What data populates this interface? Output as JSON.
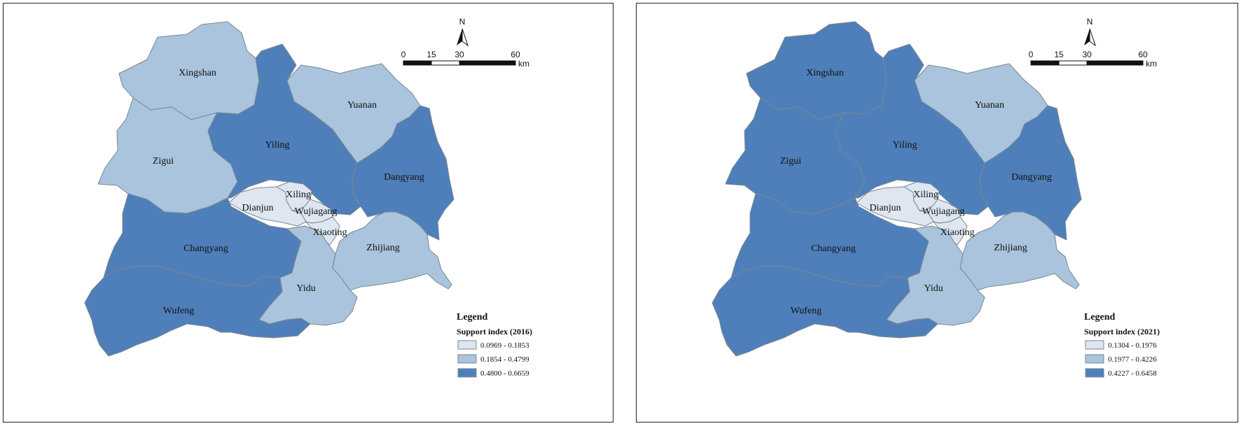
{
  "colors": {
    "class_low": "#dde6f1",
    "class_mid": "#a9c4dc",
    "class_high": "#4f7fba",
    "boundary": "#7a8791"
  },
  "north_label": "N",
  "scale_bar": {
    "ticks": [
      "0",
      "15",
      "30",
      "60"
    ],
    "unit": "km"
  },
  "maps": [
    {
      "legend_title": "Legend",
      "legend_subtitle": "Support index (2016)",
      "classes": [
        {
          "label": "0.0969 - 0.1853",
          "color_key": "class_low"
        },
        {
          "label": "0.1854 - 0.4799",
          "color_key": "class_mid"
        },
        {
          "label": "0.4800 - 0.6659",
          "color_key": "class_high"
        }
      ],
      "districts": {
        "Xingshan": "class_mid",
        "Zigui": "class_mid",
        "Yuanan": "class_mid",
        "Yiling": "class_high",
        "Dangyang": "class_high",
        "Changyang": "class_high",
        "Wufeng": "class_high",
        "Yidu": "class_mid",
        "Zhijiang": "class_mid",
        "Dianjun": "class_low",
        "Xiling": "class_low",
        "Wujiagang": "class_low",
        "Xiaoting": "class_low"
      }
    },
    {
      "legend_title": "Legend",
      "legend_subtitle": "Support index (2021)",
      "classes": [
        {
          "label": "0.1304 - 0.1976",
          "color_key": "class_low"
        },
        {
          "label": "0.1977 - 0.4226",
          "color_key": "class_mid"
        },
        {
          "label": "0.4227 - 0.6458",
          "color_key": "class_high"
        }
      ],
      "districts": {
        "Xingshan": "class_high",
        "Zigui": "class_high",
        "Yuanan": "class_mid",
        "Yiling": "class_high",
        "Dangyang": "class_high",
        "Changyang": "class_high",
        "Wufeng": "class_high",
        "Yidu": "class_mid",
        "Zhijiang": "class_mid",
        "Dianjun": "class_low",
        "Xiling": "class_low",
        "Wujiagang": "class_low",
        "Xiaoting": "class_low"
      }
    }
  ]
}
